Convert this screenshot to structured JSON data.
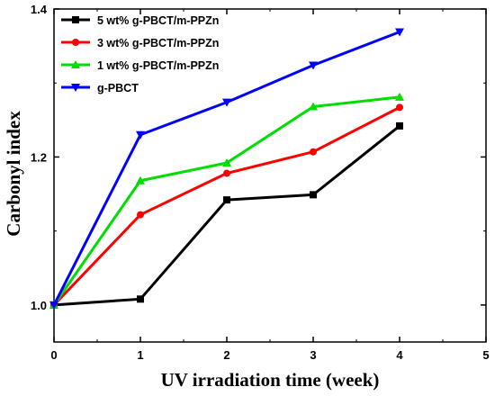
{
  "chart_data": {
    "type": "line",
    "xlabel": "UV irradiation time (week)",
    "ylabel": "Carbonyl index",
    "xlim": [
      0,
      5
    ],
    "ylim": [
      0.95,
      1.4
    ],
    "xticks": [
      "0",
      "1",
      "2",
      "3",
      "4",
      "5"
    ],
    "yticks": [
      "1.0",
      "1.2",
      "1.4"
    ],
    "grid": false,
    "legend_position": "top-left",
    "x": [
      0,
      1,
      2,
      3,
      4
    ],
    "series": [
      {
        "name": "5 wt% g-PBCT/m-PPZn",
        "color": "#000000",
        "marker": "square",
        "values": [
          1.0,
          1.008,
          1.142,
          1.149,
          1.242
        ]
      },
      {
        "name": "3 wt% g-PBCT/m-PPZn",
        "color": "#ff0000",
        "marker": "circle",
        "values": [
          1.0,
          1.122,
          1.178,
          1.207,
          1.267
        ]
      },
      {
        "name": "1 wt% g-PBCT/m-PPZn",
        "color": "#00dd00",
        "marker": "triangle-up",
        "values": [
          1.0,
          1.168,
          1.192,
          1.268,
          1.281
        ]
      },
      {
        "name": "g-PBCT",
        "color": "#0000ff",
        "marker": "triangle-down",
        "values": [
          1.0,
          1.23,
          1.274,
          1.324,
          1.369
        ]
      }
    ]
  }
}
